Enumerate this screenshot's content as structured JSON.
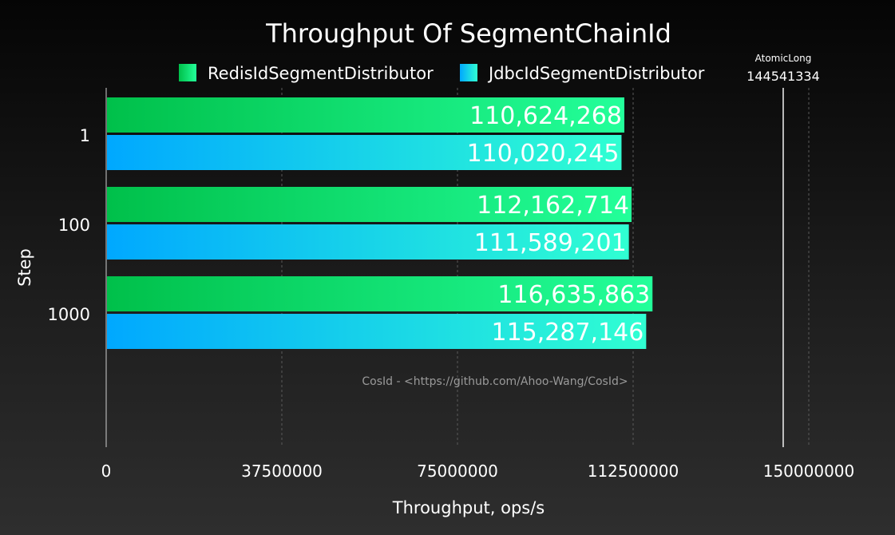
{
  "chart_data": {
    "type": "bar",
    "orientation": "horizontal",
    "title": "Throughput Of SegmentChainId",
    "xlabel": "Throughput, ops/s",
    "ylabel": "Step",
    "categories": [
      "1",
      "100",
      "1000"
    ],
    "series": [
      {
        "name": "RedisIdSegmentDistributor",
        "color_start": "#00c04a",
        "color_end": "#23ff9a",
        "values": [
          110624268,
          112162714,
          116635863
        ],
        "labels": [
          "110,624,268",
          "112,162,714",
          "116,635,863"
        ]
      },
      {
        "name": "JdbcIdSegmentDistributor",
        "color_start": "#00a8ff",
        "color_end": "#30ffd2",
        "values": [
          110020245,
          111589201,
          115287146
        ],
        "labels": [
          "110,020,245",
          "111,589,201",
          "115,287,146"
        ]
      }
    ],
    "xlim": [
      0,
      165000000
    ],
    "xticks": [
      0,
      37500000,
      75000000,
      112500000,
      150000000
    ],
    "xtick_labels": [
      "0",
      "37500000",
      "75000000",
      "112500000",
      "150000000"
    ],
    "grid": "vertical-dashed",
    "legend_position": "top",
    "reference_lines": [
      {
        "label": "AtomicLong",
        "value": 144541334,
        "value_label": "144541334"
      }
    ],
    "watermark": "CosId - <https://github.com/Ahoo-Wang/CosId>"
  }
}
